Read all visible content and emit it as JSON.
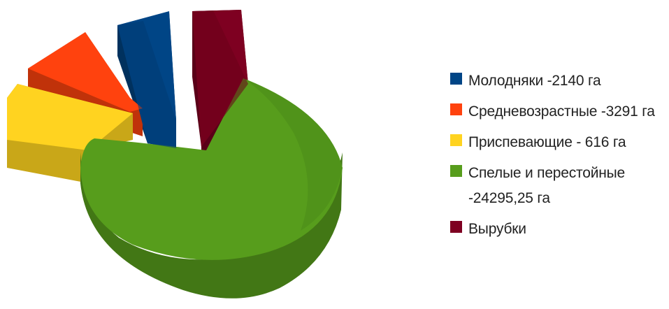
{
  "chart_data": {
    "type": "pie",
    "style": "3d-exploded",
    "title": "",
    "legend_position": "right",
    "series": [
      {
        "name": "Молодняки -2140 га",
        "value": 2140,
        "color": "#004586",
        "side": "#00315e"
      },
      {
        "name": "Средневозрастные -3291 га",
        "value": 3291,
        "color": "#ff420e",
        "side": "#c0320a"
      },
      {
        "name": "Приспевающие - 616 га",
        "value": 616,
        "color": "#ffd320",
        "side": "#c9a718"
      },
      {
        "name": "Спелые и перестойные -24295,25 га",
        "value": 24295.25,
        "color": "#579d1c",
        "side": "#427715"
      },
      {
        "name": "Вырубки",
        "value": null,
        "color": "#7e0021",
        "side": "#5a0018"
      }
    ]
  }
}
